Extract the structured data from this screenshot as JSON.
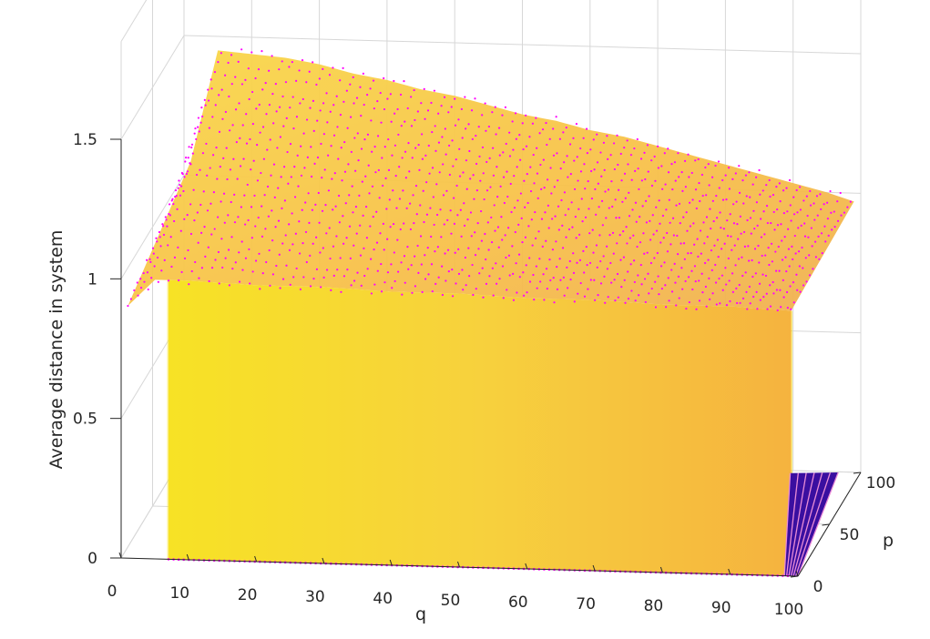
{
  "chart_data": {
    "type": "surface3d",
    "title": "",
    "xlabel": "q",
    "ylabel": "p",
    "zlabel": "Average distance in system",
    "xlim": [
      0,
      100
    ],
    "ylim": [
      0,
      100
    ],
    "zlim": [
      0,
      1.5
    ],
    "x_ticks": [
      0,
      10,
      20,
      30,
      40,
      50,
      60,
      70,
      80,
      90,
      100
    ],
    "y_ticks": [
      0,
      50,
      100
    ],
    "z_ticks": [
      0,
      0.5,
      1,
      1.5
    ],
    "x_tick_labels": [
      "0",
      "10",
      "20",
      "30",
      "40",
      "50",
      "60",
      "70",
      "80",
      "90",
      "100"
    ],
    "y_tick_labels": [
      "0",
      "50",
      "100"
    ],
    "z_tick_labels": [
      "0",
      "0.5",
      "1",
      "1.5"
    ],
    "grid": true,
    "colormap": "plasma",
    "marker_color": "#ff00ff",
    "surface_ridge": {
      "description_at_p_max": "values near the top edge (p=100) of the surface",
      "q": [
        0,
        5,
        10,
        15,
        20,
        25,
        30,
        35,
        40,
        45,
        50,
        55,
        60,
        65,
        70,
        75,
        80,
        85,
        90,
        95,
        99
      ],
      "z": [
        0.95,
        1.45,
        1.44,
        1.43,
        1.41,
        1.38,
        1.36,
        1.33,
        1.31,
        1.28,
        1.25,
        1.23,
        1.2,
        1.18,
        1.15,
        1.12,
        1.09,
        1.06,
        1.03,
        1.0,
        0.97
      ]
    },
    "surface_front_edge": {
      "description_at_p_min": "values at the front edge (p=0)",
      "q": [
        0,
        5,
        10,
        20,
        30,
        40,
        50,
        60,
        70,
        80,
        90,
        99
      ],
      "z": [
        0.88,
        1.0,
        1.0,
        0.99,
        0.99,
        0.98,
        0.98,
        0.97,
        0.97,
        0.96,
        0.96,
        0.95
      ]
    },
    "drop_column_q": 100,
    "drop_to_z": 0
  }
}
